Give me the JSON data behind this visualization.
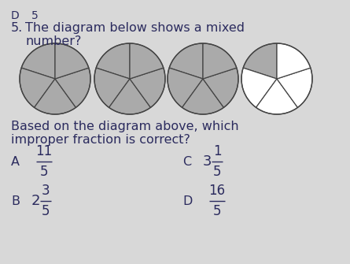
{
  "question_number": "5.",
  "question_text_line1": "The diagram below shows a mixed",
  "question_text_line2": "number?",
  "followup_line1": "Based on the diagram above, which",
  "followup_line2": "improper fraction is correct?",
  "circles": [
    {
      "shaded": 5,
      "total": 5
    },
    {
      "shaded": 5,
      "total": 5
    },
    {
      "shaded": 5,
      "total": 5
    },
    {
      "shaded": 1,
      "total": 5
    }
  ],
  "bg_color": "#d8d8d8",
  "circle_fill_color": "#aaaaaa",
  "circle_edge_color": "#444444",
  "text_color": "#2b2b5e",
  "header_text_1": "D",
  "header_text_2": "5"
}
